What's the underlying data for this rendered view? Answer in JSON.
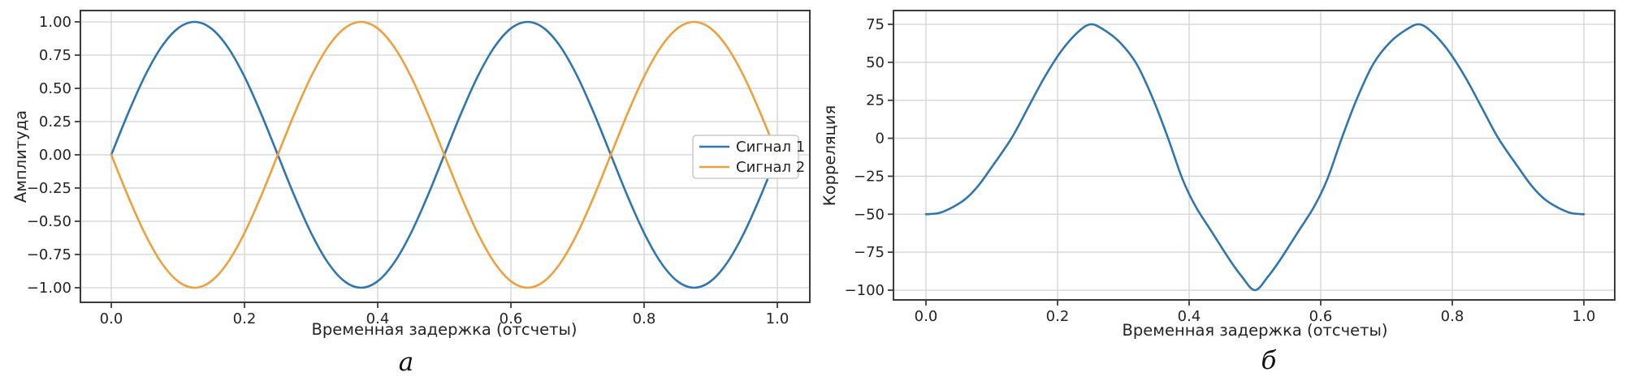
{
  "page": {
    "background": "#ffffff"
  },
  "style": {
    "grid_color": "#d2d2d2",
    "spine_color": "#3c3c3c",
    "text_color": "#242424",
    "legend_border": "#c9c9c9",
    "legend_bg": "#ffffff",
    "series_blue": "#2f76af",
    "series_orange": "#eda03b"
  },
  "chart_data": [
    {
      "type": "line",
      "caption": "а",
      "title": "",
      "xlabel": "Временная задержка (отсчеты)",
      "ylabel": "Амплитуда",
      "xlim": [
        -0.05,
        1.05
      ],
      "ylim": [
        -1.11,
        1.09
      ],
      "grid": true,
      "legend": {
        "position": "center right",
        "labels": [
          "Сигнал 1",
          "Сигнал 2"
        ]
      },
      "xticks": [
        0,
        0.2,
        0.4,
        0.6,
        0.8,
        1.0
      ],
      "xtick_labels": [
        "0.0",
        "0.2",
        "0.4",
        "0.6",
        "0.8",
        "1.0"
      ],
      "yticks": [
        1.0,
        0.75,
        0.5,
        0.25,
        0,
        -0.25,
        -0.5,
        -0.75,
        -1.0
      ],
      "ytick_labels": [
        "1.00",
        "0.75",
        "0.50",
        "0.25",
        "0.00",
        "−0.25",
        "−0.50",
        "−0.75",
        "−1.00"
      ],
      "x": [
        0,
        0.025,
        0.05,
        0.075,
        0.1,
        0.125,
        0.15,
        0.175,
        0.2,
        0.225,
        0.25,
        0.275,
        0.3,
        0.325,
        0.35,
        0.375,
        0.4,
        0.425,
        0.45,
        0.475,
        0.5,
        0.525,
        0.55,
        0.575,
        0.6,
        0.625,
        0.65,
        0.675,
        0.7,
        0.725,
        0.75,
        0.775,
        0.8,
        0.825,
        0.85,
        0.875,
        0.9,
        0.925,
        0.95,
        0.975,
        1.0
      ],
      "series": [
        {
          "name": "Сигнал 1",
          "color": "#2f76af",
          "values": [
            0,
            0.309,
            0.588,
            0.809,
            0.951,
            1,
            0.951,
            0.809,
            0.588,
            0.309,
            0,
            -0.309,
            -0.588,
            -0.809,
            -0.951,
            -1,
            -0.951,
            -0.809,
            -0.588,
            -0.309,
            0,
            0.309,
            0.588,
            0.809,
            0.951,
            1,
            0.951,
            0.809,
            0.588,
            0.309,
            0,
            -0.309,
            -0.588,
            -0.809,
            -0.951,
            -1,
            -0.951,
            -0.809,
            -0.588,
            -0.309,
            0
          ]
        },
        {
          "name": "Сигнал 2",
          "color": "#eda03b",
          "values": [
            0,
            -0.309,
            -0.588,
            -0.809,
            -0.951,
            -1,
            -0.951,
            -0.809,
            -0.588,
            -0.309,
            0,
            0.309,
            0.588,
            0.809,
            0.951,
            1,
            0.951,
            0.809,
            0.588,
            0.309,
            0,
            -0.309,
            -0.588,
            -0.809,
            -0.951,
            -1,
            -0.951,
            -0.809,
            -0.588,
            -0.309,
            0,
            0.309,
            0.588,
            0.809,
            0.951,
            1,
            0.951,
            0.809,
            0.588,
            0.309,
            0
          ]
        }
      ]
    },
    {
      "type": "line",
      "caption": "б",
      "title": "",
      "xlabel": "Временная задержка (отсчеты)",
      "ylabel": "Корреляция",
      "xlim": [
        -0.05,
        1.05
      ],
      "ylim": [
        -106,
        84
      ],
      "grid": true,
      "legend": null,
      "xticks": [
        0,
        0.2,
        0.4,
        0.6,
        0.8,
        1.0
      ],
      "xtick_labels": [
        "0.0",
        "0.2",
        "0.4",
        "0.6",
        "0.8",
        "1.0"
      ],
      "yticks": [
        75,
        50,
        25,
        0,
        -25,
        -50,
        -75,
        -100
      ],
      "ytick_labels": [
        "75",
        "50",
        "25",
        "0",
        "−25",
        "−50",
        "−75",
        "−100"
      ],
      "x": [
        0,
        0.02,
        0.04,
        0.06,
        0.08,
        0.1,
        0.13,
        0.155,
        0.18,
        0.205,
        0.23,
        0.25,
        0.27,
        0.295,
        0.32,
        0.345,
        0.368,
        0.39,
        0.41,
        0.435,
        0.46,
        0.48,
        0.5,
        0.52,
        0.54,
        0.565,
        0.59,
        0.61,
        0.632,
        0.655,
        0.68,
        0.705,
        0.73,
        0.75,
        0.77,
        0.795,
        0.82,
        0.845,
        0.87,
        0.9,
        0.92,
        0.94,
        0.96,
        0.98,
        1.0
      ],
      "series": [
        {
          "name": "Корреляция",
          "color": "#2f76af",
          "values": [
            -50,
            -49.2,
            -45.5,
            -40,
            -31,
            -19,
            0,
            20,
            40,
            57,
            69.5,
            75,
            71.5,
            63,
            49,
            26,
            0,
            -27,
            -45,
            -62,
            -79,
            -91,
            -100,
            -91,
            -79,
            -62,
            -45,
            -27,
            0,
            26,
            49,
            63,
            71.5,
            75,
            69.5,
            57,
            40,
            20,
            0,
            -19,
            -31,
            -40,
            -45.5,
            -49.2,
            -50
          ]
        }
      ]
    }
  ]
}
